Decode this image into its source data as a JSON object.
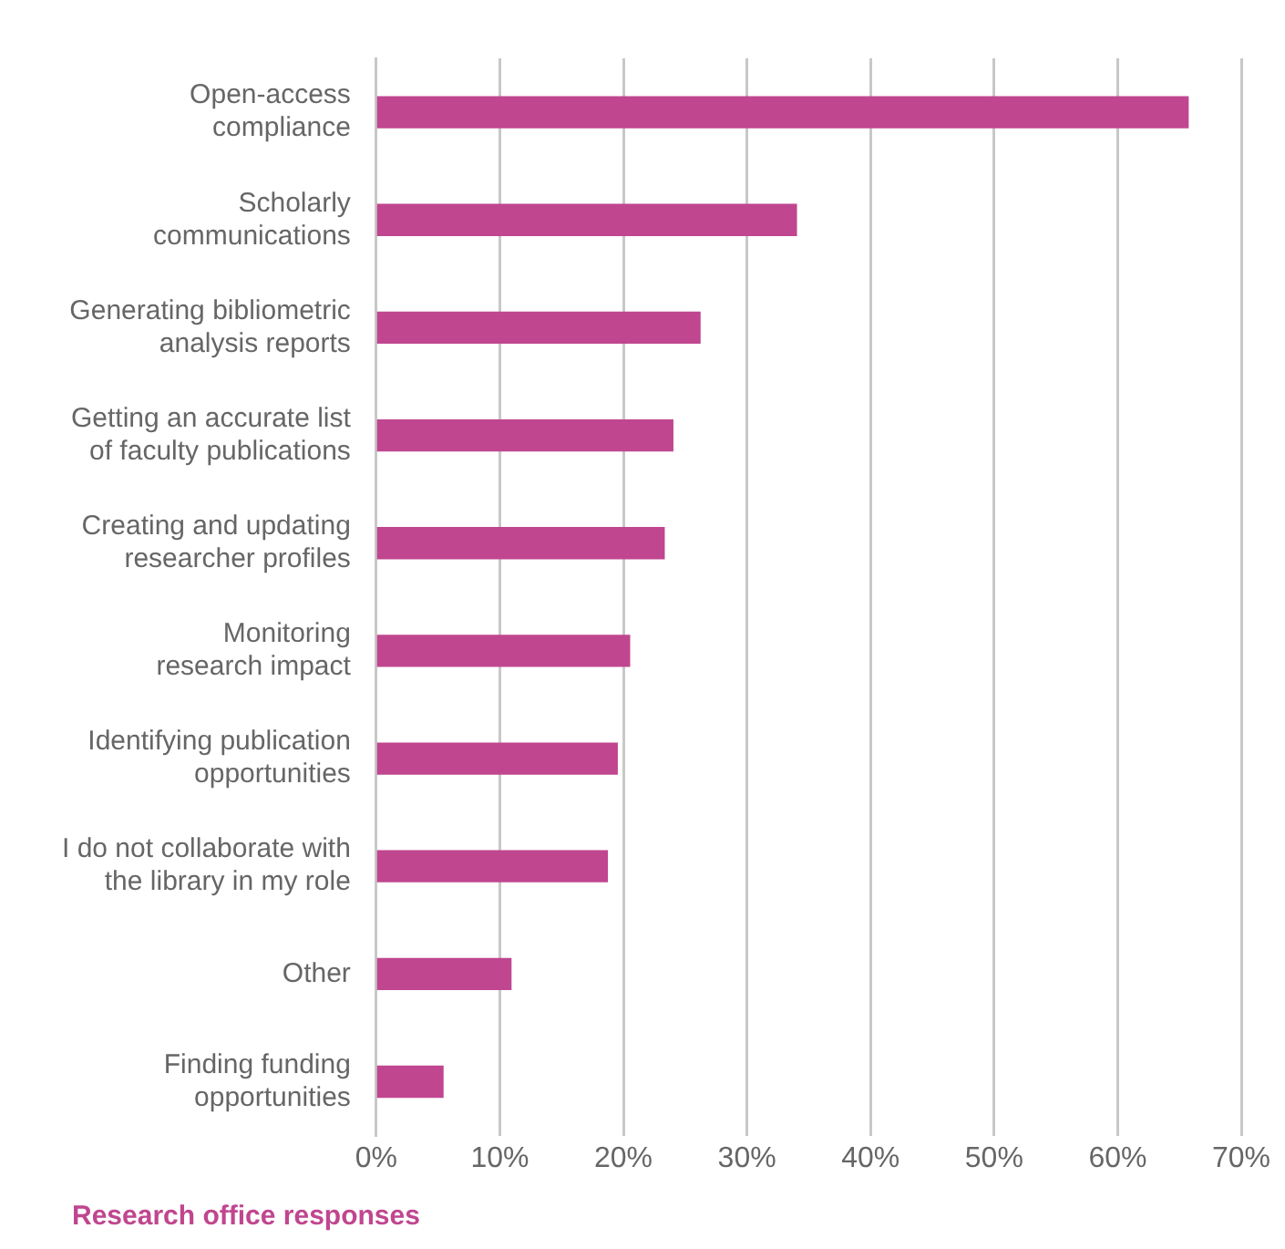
{
  "chart_data": {
    "type": "bar",
    "orientation": "horizontal",
    "categories": [
      "Open-access compliance",
      "Scholarly communications",
      "Generating bibliometric analysis reports",
      "Getting an accurate list of faculty publications",
      "Creating and updating researcher profiles",
      "Monitoring research impact",
      "Identifying publication opportunities",
      "I do not collaborate with the library in my role",
      "Other",
      "Finding funding opportunities"
    ],
    "series": [
      {
        "name": "Research office responses",
        "color": "#c0468f",
        "values": [
          65.7,
          34,
          26.2,
          24,
          23.3,
          20.5,
          19.5,
          18.7,
          10.9,
          5.4
        ]
      }
    ],
    "xlim": [
      0,
      70
    ],
    "xticks": [
      {
        "value": 0,
        "label": "0%"
      },
      {
        "value": 10,
        "label": "10%"
      },
      {
        "value": 20,
        "label": "20%"
      },
      {
        "value": 30,
        "label": "30%"
      },
      {
        "value": 40,
        "label": "40%"
      },
      {
        "value": 50,
        "label": "50%"
      },
      {
        "value": 60,
        "label": "60%"
      },
      {
        "value": 70,
        "label": "70%"
      }
    ],
    "grid": "x",
    "legend": "bottom left"
  }
}
